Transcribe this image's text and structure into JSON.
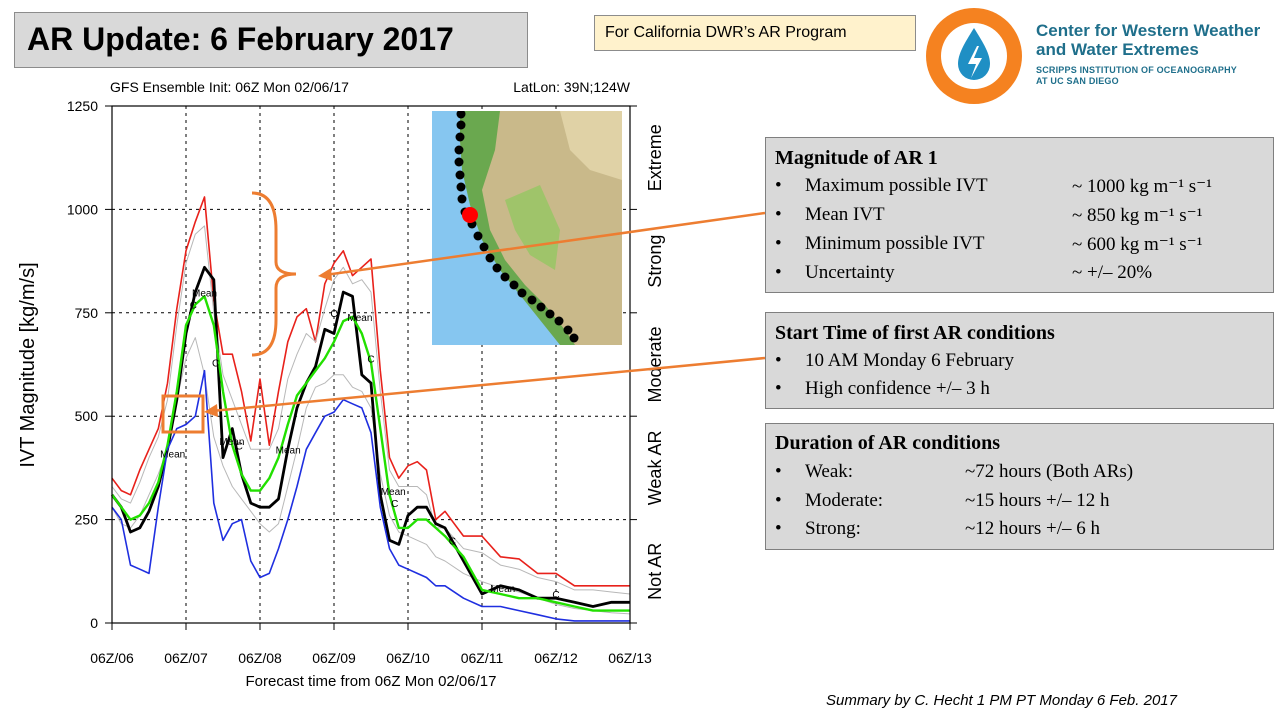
{
  "title": "AR Update: 6 February 2017",
  "program_note": "For California DWR’s AR Program",
  "org": {
    "name_line1": "Center for Western Weather",
    "name_line2": "and Water Extremes",
    "sub_line1": "SCRIPPS INSTITUTION OF OCEANOGRAPHY",
    "sub_line2": "AT UC SAN DIEGO",
    "logo_icon": "water-drop-logo-icon",
    "colors": {
      "ring": "#f58220",
      "drop": "#1f8fc4",
      "text": "#1f6f8b"
    }
  },
  "magnitude": {
    "heading": "Magnitude of AR 1",
    "items": [
      {
        "bullet": "•",
        "label": "Maximum possible IVT",
        "value": "~ 1000 kg m⁻¹ s⁻¹"
      },
      {
        "bullet": "•",
        "label": "Mean IVT",
        "value": "~ 850 kg m⁻¹ s⁻¹"
      },
      {
        "bullet": "•",
        "label": "Minimum possible IVT",
        "value": "~ 600 kg m⁻¹ s⁻¹"
      },
      {
        "bullet": "•",
        "label": "Uncertainty",
        "value": "~ +/– 20%"
      }
    ]
  },
  "start_time": {
    "heading": "Start Time of first AR conditions",
    "items": [
      {
        "bullet": "•",
        "text": "10 AM Monday 6 February"
      },
      {
        "bullet": "•",
        "text": "High confidence +/– 3 h"
      }
    ]
  },
  "duration": {
    "heading": "Duration of AR conditions",
    "items": [
      {
        "bullet": "•",
        "label": "Weak:",
        "value": "~72 hours (Both ARs)"
      },
      {
        "bullet": "•",
        "label": "Moderate:",
        "value": "~15 hours +/– 12 h"
      },
      {
        "bullet": "•",
        "label": "Strong:",
        "value": "~12 hours +/– 6 h"
      }
    ]
  },
  "footer": "Summary by C. Hecht 1 PM PT Monday 6 Feb. 2017",
  "map_inset": {
    "location_marker_color": "#ff0000",
    "coast_point_color": "#000000"
  },
  "chart_data": {
    "type": "line",
    "title": "GFS Ensemble Init: 06Z Mon 02/06/17",
    "latlon": "LatLon: 39N;124W",
    "xlabel": "Forecast time from 06Z Mon 02/06/17",
    "ylabel": "IVT Magnitude [kg/m/s]",
    "ylim": [
      0,
      1250
    ],
    "xlim": [
      0,
      7
    ],
    "x_ticks": [
      0,
      1,
      2,
      3,
      4,
      5,
      6,
      7
    ],
    "x_tick_labels": [
      "06Z/06",
      "06Z/07",
      "06Z/08",
      "06Z/09",
      "06Z/10",
      "06Z/11",
      "06Z/12",
      "06Z/13"
    ],
    "y_ticks": [
      0,
      250,
      500,
      750,
      1000,
      1250
    ],
    "y_tick_labels": [
      "0",
      "250",
      "500",
      "750",
      "1000",
      "1250"
    ],
    "grid": true,
    "categories": [
      {
        "label": "Not AR",
        "from": 0,
        "to": 250
      },
      {
        "label": "Weak AR",
        "from": 250,
        "to": 500
      },
      {
        "label": "Moderate",
        "from": 500,
        "to": 750
      },
      {
        "label": "Strong",
        "from": 750,
        "to": 1000
      },
      {
        "label": "Extreme",
        "from": 1000,
        "to": 1250
      }
    ],
    "series": [
      {
        "role": "max",
        "color": "#e8211b",
        "x": [
          0,
          0.125,
          0.25,
          0.375,
          0.5,
          0.625,
          0.75,
          0.875,
          1,
          1.125,
          1.25,
          1.375,
          1.5,
          1.625,
          1.75,
          1.875,
          2,
          2.125,
          2.25,
          2.375,
          2.5,
          2.625,
          2.75,
          2.875,
          3,
          3.125,
          3.25,
          3.375,
          3.5,
          3.625,
          3.75,
          3.875,
          4,
          4.125,
          4.25,
          4.375,
          4.5,
          4.75,
          5,
          5.25,
          5.5,
          5.75,
          6,
          6.25,
          6.5,
          6.75,
          7
        ],
        "values": [
          350,
          320,
          310,
          370,
          420,
          470,
          580,
          760,
          900,
          970,
          1030,
          780,
          650,
          650,
          560,
          440,
          590,
          430,
          560,
          680,
          740,
          760,
          680,
          820,
          870,
          900,
          840,
          860,
          880,
          610,
          400,
          350,
          380,
          390,
          370,
          250,
          270,
          210,
          210,
          160,
          155,
          120,
          120,
          90,
          90,
          90,
          90
        ]
      },
      {
        "role": "spread",
        "color": "#b8b8b8",
        "x": [
          0,
          0.125,
          0.25,
          0.375,
          0.5,
          0.625,
          0.75,
          0.875,
          1,
          1.125,
          1.25,
          1.375,
          1.5,
          1.625,
          1.75,
          1.875,
          2,
          2.125,
          2.25,
          2.375,
          2.5,
          2.625,
          2.75,
          2.875,
          3,
          3.125,
          3.25,
          3.375,
          3.5,
          3.625,
          3.75,
          3.875,
          4,
          4.125,
          4.25,
          4.375,
          4.5,
          4.75,
          5,
          5.25,
          5.5,
          5.75,
          6,
          6.25,
          6.5,
          6.75,
          7
        ],
        "values": [
          330,
          300,
          290,
          340,
          400,
          450,
          540,
          720,
          870,
          940,
          960,
          750,
          600,
          540,
          480,
          420,
          420,
          420,
          470,
          590,
          650,
          700,
          680,
          760,
          830,
          860,
          820,
          830,
          800,
          560,
          370,
          330,
          330,
          330,
          310,
          230,
          230,
          180,
          170,
          140,
          130,
          110,
          100,
          80,
          80,
          75,
          70
        ]
      },
      {
        "role": "spread",
        "color": "#b8b8b8",
        "x": [
          0,
          0.125,
          0.25,
          0.375,
          0.5,
          0.625,
          0.75,
          0.875,
          1,
          1.125,
          1.25,
          1.375,
          1.5,
          1.625,
          1.75,
          1.875,
          2,
          2.125,
          2.25,
          2.375,
          2.5,
          2.625,
          2.75,
          2.875,
          3,
          3.125,
          3.25,
          3.375,
          3.5,
          3.625,
          3.75,
          3.875,
          4,
          4.125,
          4.25,
          4.375,
          4.5,
          4.75,
          5,
          5.25,
          5.5,
          5.75,
          6,
          6.25,
          6.5,
          6.75,
          7
        ],
        "values": [
          280,
          240,
          230,
          260,
          310,
          360,
          420,
          540,
          640,
          690,
          600,
          450,
          380,
          330,
          300,
          270,
          240,
          220,
          240,
          330,
          420,
          520,
          570,
          580,
          600,
          600,
          570,
          560,
          520,
          360,
          260,
          220,
          210,
          200,
          190,
          160,
          150,
          120,
          100,
          85,
          75,
          60,
          45,
          35,
          30,
          25,
          22
        ]
      },
      {
        "role": "ensemble_mean",
        "name": "Mean",
        "color": "#000000",
        "x": [
          0,
          0.125,
          0.25,
          0.375,
          0.5,
          0.625,
          0.75,
          0.875,
          1,
          1.125,
          1.25,
          1.375,
          1.5,
          1.625,
          1.75,
          1.875,
          2,
          2.125,
          2.25,
          2.375,
          2.5,
          2.625,
          2.75,
          2.875,
          3,
          3.125,
          3.25,
          3.375,
          3.5,
          3.625,
          3.75,
          3.875,
          4,
          4.125,
          4.25,
          4.375,
          4.5,
          4.75,
          5,
          5.25,
          5.5,
          5.75,
          6,
          6.25,
          6.5,
          6.75,
          7
        ],
        "values": [
          310,
          280,
          220,
          230,
          270,
          330,
          420,
          540,
          700,
          800,
          860,
          830,
          400,
          470,
          360,
          290,
          280,
          280,
          300,
          420,
          520,
          580,
          620,
          710,
          700,
          800,
          790,
          600,
          580,
          310,
          200,
          190,
          260,
          280,
          280,
          240,
          230,
          150,
          70,
          90,
          80,
          60,
          60,
          50,
          40,
          50,
          50
        ]
      },
      {
        "role": "control",
        "name": "C",
        "color": "#22e000",
        "x": [
          0,
          0.125,
          0.25,
          0.375,
          0.5,
          0.625,
          0.75,
          0.875,
          1,
          1.125,
          1.25,
          1.375,
          1.5,
          1.625,
          1.75,
          1.875,
          2,
          2.125,
          2.25,
          2.375,
          2.5,
          2.625,
          2.75,
          2.875,
          3,
          3.125,
          3.25,
          3.375,
          3.5,
          3.625,
          3.75,
          3.875,
          4,
          4.125,
          4.25,
          4.375,
          4.5,
          4.75,
          5,
          5.25,
          5.5,
          5.75,
          6,
          6.25,
          6.5,
          6.75,
          7
        ],
        "values": [
          310,
          280,
          250,
          260,
          290,
          340,
          430,
          560,
          720,
          770,
          790,
          720,
          560,
          430,
          360,
          320,
          320,
          350,
          400,
          480,
          550,
          580,
          610,
          640,
          680,
          730,
          740,
          700,
          630,
          470,
          310,
          230,
          230,
          250,
          250,
          230,
          210,
          160,
          80,
          70,
          60,
          60,
          50,
          40,
          30,
          30,
          30
        ]
      },
      {
        "role": "min",
        "color": "#1f2fe0",
        "x": [
          0,
          0.125,
          0.25,
          0.375,
          0.5,
          0.625,
          0.75,
          0.875,
          1,
          1.125,
          1.25,
          1.375,
          1.5,
          1.625,
          1.75,
          1.875,
          2,
          2.125,
          2.25,
          2.375,
          2.5,
          2.625,
          2.75,
          2.875,
          3,
          3.125,
          3.25,
          3.375,
          3.5,
          3.625,
          3.75,
          3.875,
          4,
          4.125,
          4.25,
          4.375,
          4.5,
          4.75,
          5,
          5.25,
          5.5,
          5.75,
          6,
          6.25,
          6.5,
          6.75,
          7
        ],
        "values": [
          280,
          250,
          140,
          130,
          120,
          280,
          420,
          470,
          480,
          500,
          610,
          290,
          200,
          240,
          250,
          150,
          110,
          120,
          180,
          250,
          330,
          420,
          460,
          500,
          510,
          540,
          530,
          520,
          460,
          280,
          180,
          140,
          130,
          120,
          110,
          90,
          90,
          60,
          40,
          40,
          30,
          20,
          10,
          5,
          5,
          5,
          5
        ]
      }
    ],
    "series_labels": [
      {
        "text": "C",
        "x": 1.1,
        "y": 760,
        "color": "#000000"
      },
      {
        "text": "Mean",
        "x": 1.25,
        "y": 790,
        "color": "#000000"
      },
      {
        "text": "C",
        "x": 1.4,
        "y": 620,
        "color": "#000000"
      },
      {
        "text": "Mean",
        "x": 0.82,
        "y": 400,
        "color": "#000000"
      },
      {
        "text": "Mean",
        "x": 1.62,
        "y": 430,
        "color": "#000000"
      },
      {
        "text": "C",
        "x": 1.72,
        "y": 420,
        "color": "#000000"
      },
      {
        "text": "Mean",
        "x": 2.38,
        "y": 410,
        "color": "#000000"
      },
      {
        "text": "C",
        "x": 3.0,
        "y": 740,
        "color": "#000000"
      },
      {
        "text": "Mean",
        "x": 3.35,
        "y": 730,
        "color": "#000000"
      },
      {
        "text": "C",
        "x": 3.5,
        "y": 630,
        "color": "#000000"
      },
      {
        "text": "Mean",
        "x": 3.8,
        "y": 310,
        "color": "#000000"
      },
      {
        "text": "C",
        "x": 3.82,
        "y": 280,
        "color": "#000000"
      },
      {
        "text": "C",
        "x": 4.6,
        "y": 190,
        "color": "#000000"
      },
      {
        "text": "Mean",
        "x": 5.28,
        "y": 75,
        "color": "#000000"
      },
      {
        "text": "C",
        "x": 6.0,
        "y": 60,
        "color": "#000000"
      }
    ]
  }
}
